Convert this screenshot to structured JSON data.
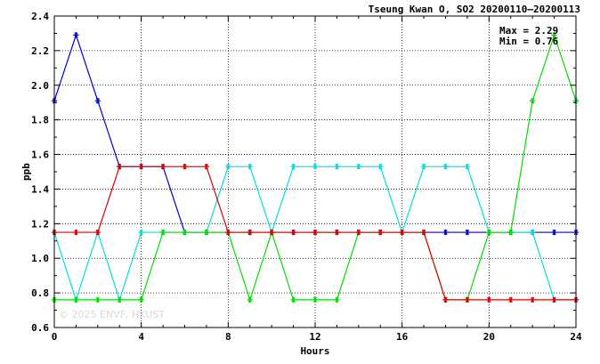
{
  "chart_data": {
    "type": "line",
    "title": "Tseung Kwan O, SO2 20200110–20200113",
    "xlabel": "Hours",
    "ylabel": "ppb",
    "xlim": [
      0,
      24
    ],
    "ylim": [
      0.6,
      2.4
    ],
    "xticks": [
      0,
      4,
      8,
      12,
      16,
      20,
      24
    ],
    "yticks": [
      0.6,
      0.8,
      1.0,
      1.2,
      1.4,
      1.6,
      1.8,
      2.0,
      2.2,
      2.4
    ],
    "grid": true,
    "stats": {
      "max_label": "Max = 2.29",
      "min_label": "Min = 0.76"
    },
    "watermark": "© 2025  ENVF, HKUST",
    "x": [
      0,
      1,
      2,
      3,
      4,
      5,
      6,
      7,
      8,
      9,
      10,
      11,
      12,
      13,
      14,
      15,
      16,
      17,
      18,
      19,
      20,
      21,
      22,
      23,
      24
    ],
    "series": [
      {
        "color": "#0000cc",
        "values": [
          1.91,
          2.29,
          1.91,
          1.53,
          1.53,
          1.53,
          1.15,
          1.15,
          1.15,
          1.15,
          1.15,
          1.15,
          1.15,
          1.15,
          1.15,
          1.15,
          1.15,
          1.15,
          1.15,
          1.15,
          1.15,
          1.15,
          1.15,
          1.15,
          1.15
        ]
      },
      {
        "color": "#00dddd",
        "values": [
          1.15,
          0.76,
          1.15,
          0.76,
          1.15,
          1.15,
          1.15,
          1.15,
          1.53,
          1.53,
          1.15,
          1.53,
          1.53,
          1.53,
          1.53,
          1.53,
          1.15,
          1.53,
          1.53,
          1.53,
          1.15,
          1.15,
          1.15,
          0.76,
          0.76
        ]
      },
      {
        "color": "#00dd00",
        "values": [
          0.76,
          0.76,
          0.76,
          0.76,
          0.76,
          1.15,
          1.15,
          1.15,
          1.15,
          0.76,
          1.15,
          0.76,
          0.76,
          0.76,
          1.15,
          1.15,
          1.15,
          1.15,
          0.76,
          0.76,
          1.15,
          1.15,
          1.91,
          2.29,
          1.91
        ]
      },
      {
        "color": "#dd0000",
        "values": [
          1.15,
          1.15,
          1.15,
          1.53,
          1.53,
          1.53,
          1.53,
          1.53,
          1.15,
          1.15,
          1.15,
          1.15,
          1.15,
          1.15,
          1.15,
          1.15,
          1.15,
          1.15,
          0.76,
          0.76,
          0.76,
          0.76,
          0.76,
          0.76,
          0.76
        ]
      }
    ]
  }
}
